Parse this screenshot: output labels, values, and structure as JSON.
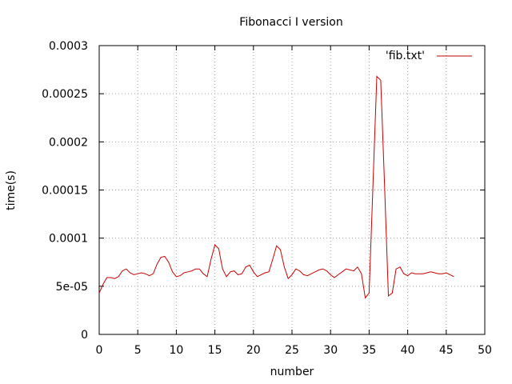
{
  "chart_data": {
    "type": "line",
    "title": "Fibonacci I version",
    "xlabel": "number",
    "ylabel": "time(s)",
    "xlim": [
      0,
      50
    ],
    "ylim": [
      0,
      0.0003
    ],
    "xticks": [
      "0",
      "5",
      "10",
      "15",
      "20",
      "25",
      "30",
      "35",
      "40",
      "45",
      "50"
    ],
    "yticks": [
      "0",
      "5e-05",
      "0.0001",
      "0.00015",
      "0.0002",
      "0.00025",
      "0.0003"
    ],
    "grid": true,
    "legend_position": "top-right",
    "series": [
      {
        "name": "'fib.txt'",
        "color": "#cc0000",
        "x": [
          0,
          0.5,
          1,
          1.5,
          2,
          2.5,
          3,
          3.5,
          4,
          4.5,
          5,
          5.5,
          6,
          6.5,
          7,
          7.5,
          8,
          8.5,
          9,
          9.5,
          10,
          10.5,
          11,
          11.5,
          12,
          12.5,
          13,
          13.5,
          14,
          14.5,
          15,
          15.5,
          16,
          16.5,
          17,
          17.5,
          18,
          18.5,
          19,
          19.5,
          20,
          20.5,
          21,
          21.5,
          22,
          22.5,
          23,
          23.5,
          24,
          24.5,
          25,
          25.5,
          26,
          26.5,
          27,
          27.5,
          28,
          28.5,
          29,
          29.5,
          30,
          30.5,
          31,
          31.5,
          32,
          32.5,
          33,
          33.5,
          34,
          34.5,
          35,
          35.5,
          36,
          36.5,
          37,
          37.5,
          38,
          38.5,
          39,
          39.5,
          40,
          40.5,
          41,
          41.5,
          42,
          42.5,
          43,
          43.5,
          44,
          44.5,
          45,
          45.5,
          46
        ],
        "y": [
          4.3e-05,
          5.2e-05,
          5.9e-05,
          5.9e-05,
          5.8e-05,
          6e-05,
          6.6e-05,
          6.8e-05,
          6.4e-05,
          6.2e-05,
          6.3e-05,
          6.4e-05,
          6.3e-05,
          6.1e-05,
          6.3e-05,
          7.3e-05,
          8e-05,
          8.1e-05,
          7.5e-05,
          6.5e-05,
          6e-05,
          6.1e-05,
          6.4e-05,
          6.5e-05,
          6.6e-05,
          6.8e-05,
          6.8e-05,
          6.3e-05,
          6e-05,
          7.8e-05,
          9.3e-05,
          8.9e-05,
          6.8e-05,
          6e-05,
          6.5e-05,
          6.6e-05,
          6.2e-05,
          6.3e-05,
          7e-05,
          7.2e-05,
          6.5e-05,
          6e-05,
          6.2e-05,
          6.4e-05,
          6.5e-05,
          7.8e-05,
          9.2e-05,
          8.8e-05,
          7e-05,
          5.8e-05,
          6.2e-05,
          6.8e-05,
          6.6e-05,
          6.2e-05,
          6.1e-05,
          6.3e-05,
          6.5e-05,
          6.7e-05,
          6.8e-05,
          6.6e-05,
          6.2e-05,
          5.9e-05,
          6.2e-05,
          6.5e-05,
          6.8e-05,
          6.7e-05,
          6.6e-05,
          7e-05,
          6.3e-05,
          3.8e-05,
          4.3e-05,
          0.000155,
          0.000268,
          0.000264,
          0.000155,
          4e-05,
          4.3e-05,
          6.8e-05,
          7e-05,
          6.3e-05,
          6.1e-05,
          6.4e-05,
          6.3e-05,
          6.3e-05,
          6.3e-05,
          6.4e-05,
          6.5e-05,
          6.4e-05,
          6.3e-05,
          6.3e-05,
          6.4e-05,
          6.2e-05,
          6e-05
        ]
      }
    ]
  }
}
